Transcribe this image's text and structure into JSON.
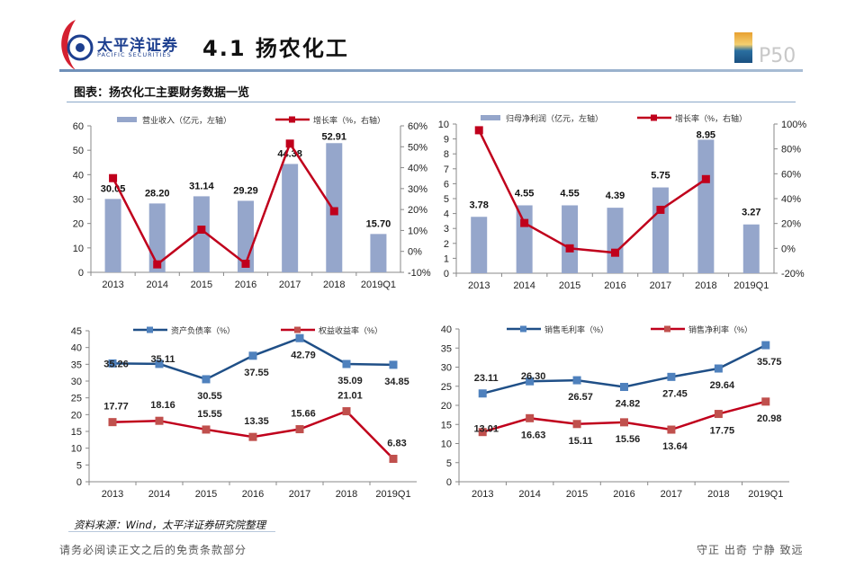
{
  "header": {
    "logo_cn": "太平洋证券",
    "logo_en": "PACIFIC SECURITIES",
    "title": "4.1 扬农化工",
    "page_number": "P50"
  },
  "figure_title": "图表：扬农化工主要财务数据一览",
  "source": "资料来源：Wind，太平洋证券研究院整理",
  "footer": {
    "left": "请务必阅读正文之后的免责条款部分",
    "right": "守正 出奇 宁静 致远"
  },
  "colors": {
    "bar": "#95a6cb",
    "red": "#c0001c",
    "blue": "#1f4f87",
    "blue_marker": "#4f81bd",
    "red_marker": "#c0504d"
  },
  "chart_data": [
    {
      "type": "bar+line",
      "categories": [
        "2013",
        "2014",
        "2015",
        "2016",
        "2017",
        "2018",
        "2019Q1"
      ],
      "series": [
        {
          "name": "营业收入（亿元，左轴）",
          "type": "bar",
          "axis": "left",
          "values": [
            30.05,
            28.2,
            31.14,
            29.29,
            44.38,
            52.91,
            15.7
          ],
          "labels": [
            "30.05",
            "28.20",
            "31.14",
            "29.29",
            "44.38",
            "52.91",
            "15.70"
          ]
        },
        {
          "name": "增长率（%，右轴）",
          "type": "line",
          "axis": "right",
          "values": [
            35,
            -6.2,
            10.4,
            -5.9,
            51.5,
            19.2,
            null
          ]
        }
      ],
      "ylim_left": [
        0,
        60
      ],
      "yticks_left": [
        "0",
        "10",
        "20",
        "30",
        "40",
        "50",
        "60"
      ],
      "ylim_right": [
        -10,
        60
      ],
      "yticks_right": [
        "-10%",
        "0%",
        "10%",
        "20%",
        "30%",
        "40%",
        "50%",
        "60%"
      ],
      "legend": "top",
      "grid": false
    },
    {
      "type": "bar+line",
      "categories": [
        "2013",
        "2014",
        "2015",
        "2016",
        "2017",
        "2018",
        "2019Q1"
      ],
      "series": [
        {
          "name": "归母净利润（亿元，左轴）",
          "type": "bar",
          "axis": "left",
          "values": [
            3.78,
            4.55,
            4.55,
            4.39,
            5.75,
            8.95,
            3.27
          ],
          "labels": [
            "3.78",
            "4.55",
            "4.55",
            "4.39",
            "5.75",
            "8.95",
            "3.27"
          ]
        },
        {
          "name": "增长率（%，右轴）",
          "type": "line",
          "axis": "right",
          "values": [
            95,
            20.4,
            0,
            -3.5,
            31,
            55.7,
            null
          ]
        }
      ],
      "ylim_left": [
        0,
        10
      ],
      "yticks_left": [
        "0",
        "1",
        "2",
        "3",
        "4",
        "5",
        "6",
        "7",
        "8",
        "9",
        "10"
      ],
      "ylim_right": [
        -20,
        100
      ],
      "yticks_right": [
        "-20%",
        "0%",
        "20%",
        "40%",
        "60%",
        "80%",
        "100%"
      ],
      "legend": "top",
      "grid": false
    },
    {
      "type": "line",
      "categories": [
        "2013",
        "2014",
        "2015",
        "2016",
        "2017",
        "2018",
        "2019Q1"
      ],
      "series": [
        {
          "name": "资产负债率（%）",
          "color": "blue",
          "values": [
            35.26,
            35.11,
            30.55,
            37.55,
            42.79,
            35.09,
            34.85
          ],
          "labels": [
            "35.26",
            "35.11",
            "30.55",
            "37.55",
            "42.79",
            "35.09",
            "34.85"
          ]
        },
        {
          "name": "权益收益率（%）",
          "color": "red",
          "values": [
            17.77,
            18.16,
            15.55,
            13.35,
            15.66,
            21.01,
            6.83
          ],
          "labels": [
            "17.77",
            "18.16",
            "15.55",
            "13.35",
            "15.66",
            "21.01",
            "6.83"
          ]
        }
      ],
      "ylim": [
        0,
        45
      ],
      "yticks": [
        "0",
        "5",
        "10",
        "15",
        "20",
        "25",
        "30",
        "35",
        "40",
        "45"
      ],
      "legend": "top",
      "grid": false
    },
    {
      "type": "line",
      "categories": [
        "2013",
        "2014",
        "2015",
        "2016",
        "2017",
        "2018",
        "2019Q1"
      ],
      "series": [
        {
          "name": "销售毛利率（%）",
          "color": "blue",
          "values": [
            23.11,
            26.3,
            26.57,
            24.82,
            27.45,
            29.64,
            35.75
          ],
          "labels": [
            "23.11",
            "26.30",
            "26.57",
            "24.82",
            "27.45",
            "29.64",
            "35.75"
          ]
        },
        {
          "name": "销售净利率（%）",
          "color": "red",
          "values": [
            13.01,
            16.63,
            15.11,
            15.56,
            13.64,
            17.75,
            20.98
          ],
          "labels": [
            "13.01",
            "16.63",
            "15.11",
            "15.56",
            "13.64",
            "17.75",
            "20.98"
          ]
        }
      ],
      "ylim": [
        0,
        40
      ],
      "yticks": [
        "0",
        "5",
        "10",
        "15",
        "20",
        "25",
        "30",
        "35",
        "40"
      ],
      "legend": "top",
      "grid": false
    }
  ]
}
